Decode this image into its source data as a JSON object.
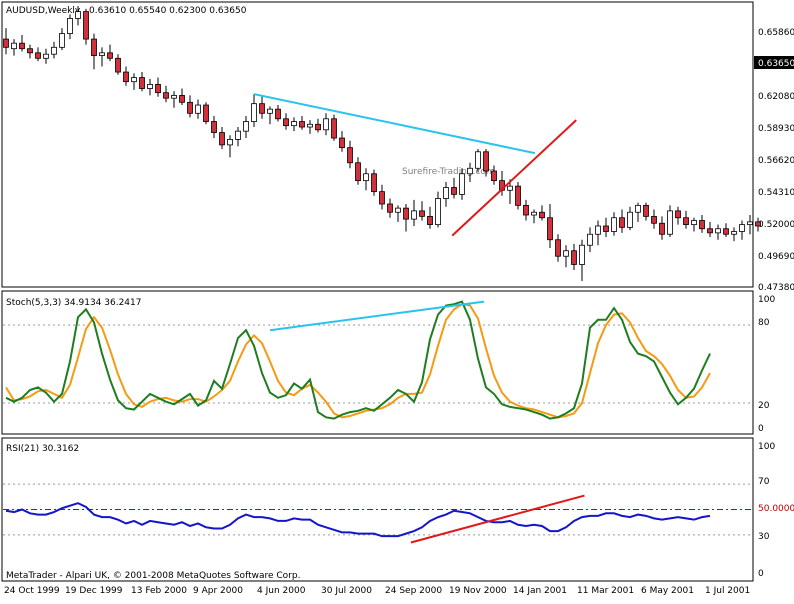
{
  "price_panel": {
    "header": {
      "symbol": "AUDUSD,Weekly",
      "ohlc": "0.63610 0.65540 0.62300 0.63650"
    },
    "axis_labels": [
      "0.65860",
      "0.62080",
      "0.58930",
      "0.56620",
      "0.54310",
      "0.52000",
      "0.49690",
      "0.47380"
    ],
    "current_price": "0.63650",
    "watermark": "Surefire-Trading.com"
  },
  "stoch_panel": {
    "header": "Stoch(5,3,3) 34.9134 36.2417",
    "axis_labels": [
      "100",
      "80",
      "20",
      "0"
    ]
  },
  "rsi_panel": {
    "header": "RSI(21) 30.3162",
    "axis_labels": [
      "100",
      "70",
      "30",
      "0"
    ],
    "level_label": "50.0000"
  },
  "footer": "MetaTrader - Alpari UK, © 2001-2008 MetaQuotes Software Corp.",
  "x_axis": [
    "24 Oct 1999",
    "19 Dec 1999",
    "13 Feb 2000",
    "9 Apr 2000",
    "4 Jun 2000",
    "30 Jul 2000",
    "24 Sep 2000",
    "19 Nov 2000",
    "14 Jan 2001",
    "11 Mar 2001",
    "6 May 2001",
    "1 Jul 2001"
  ],
  "colors": {
    "bull": "#ffffff",
    "bear": "#d0313a",
    "outline": "#000000",
    "stoch_main": "#1e7d1e",
    "stoch_signal": "#f59a12",
    "rsi": "#1515c8",
    "trend_blue": "#29c3ee",
    "trend_red": "#e01818",
    "level": "#c00000"
  },
  "chart_data": [
    {
      "type": "candlestick",
      "title": "AUDUSD,Weekly",
      "ylim": [
        0.4738,
        0.6586
      ],
      "x_start": "1999-10-24",
      "x_end": "2001-07-22",
      "candles": [
        {
          "o": 0.652,
          "h": 0.66,
          "l": 0.641,
          "c": 0.646
        },
        {
          "o": 0.645,
          "h": 0.652,
          "l": 0.64,
          "c": 0.649
        },
        {
          "o": 0.649,
          "h": 0.655,
          "l": 0.643,
          "c": 0.645
        },
        {
          "o": 0.645,
          "h": 0.648,
          "l": 0.638,
          "c": 0.642
        },
        {
          "o": 0.642,
          "h": 0.646,
          "l": 0.636,
          "c": 0.638
        },
        {
          "o": 0.638,
          "h": 0.645,
          "l": 0.634,
          "c": 0.641
        },
        {
          "o": 0.641,
          "h": 0.65,
          "l": 0.638,
          "c": 0.646
        },
        {
          "o": 0.646,
          "h": 0.66,
          "l": 0.644,
          "c": 0.656
        },
        {
          "o": 0.656,
          "h": 0.67,
          "l": 0.652,
          "c": 0.667
        },
        {
          "o": 0.667,
          "h": 0.676,
          "l": 0.662,
          "c": 0.672
        },
        {
          "o": 0.672,
          "h": 0.674,
          "l": 0.648,
          "c": 0.652
        },
        {
          "o": 0.652,
          "h": 0.656,
          "l": 0.63,
          "c": 0.64
        },
        {
          "o": 0.64,
          "h": 0.646,
          "l": 0.632,
          "c": 0.642
        },
        {
          "o": 0.642,
          "h": 0.648,
          "l": 0.636,
          "c": 0.638
        },
        {
          "o": 0.638,
          "h": 0.641,
          "l": 0.626,
          "c": 0.628
        },
        {
          "o": 0.628,
          "h": 0.632,
          "l": 0.618,
          "c": 0.621
        },
        {
          "o": 0.621,
          "h": 0.627,
          "l": 0.615,
          "c": 0.624
        },
        {
          "o": 0.624,
          "h": 0.628,
          "l": 0.614,
          "c": 0.616
        },
        {
          "o": 0.616,
          "h": 0.623,
          "l": 0.611,
          "c": 0.619
        },
        {
          "o": 0.619,
          "h": 0.624,
          "l": 0.61,
          "c": 0.613
        },
        {
          "o": 0.613,
          "h": 0.618,
          "l": 0.606,
          "c": 0.609
        },
        {
          "o": 0.609,
          "h": 0.614,
          "l": 0.602,
          "c": 0.611
        },
        {
          "o": 0.611,
          "h": 0.616,
          "l": 0.604,
          "c": 0.606
        },
        {
          "o": 0.606,
          "h": 0.611,
          "l": 0.595,
          "c": 0.598
        },
        {
          "o": 0.598,
          "h": 0.608,
          "l": 0.594,
          "c": 0.604
        },
        {
          "o": 0.604,
          "h": 0.606,
          "l": 0.59,
          "c": 0.592
        },
        {
          "o": 0.592,
          "h": 0.596,
          "l": 0.58,
          "c": 0.584
        },
        {
          "o": 0.584,
          "h": 0.588,
          "l": 0.572,
          "c": 0.575
        },
        {
          "o": 0.575,
          "h": 0.582,
          "l": 0.566,
          "c": 0.579
        },
        {
          "o": 0.579,
          "h": 0.588,
          "l": 0.574,
          "c": 0.585
        },
        {
          "o": 0.585,
          "h": 0.596,
          "l": 0.58,
          "c": 0.592
        },
        {
          "o": 0.592,
          "h": 0.612,
          "l": 0.588,
          "c": 0.605
        },
        {
          "o": 0.605,
          "h": 0.61,
          "l": 0.594,
          "c": 0.598
        },
        {
          "o": 0.598,
          "h": 0.603,
          "l": 0.59,
          "c": 0.601
        },
        {
          "o": 0.601,
          "h": 0.604,
          "l": 0.592,
          "c": 0.594
        },
        {
          "o": 0.594,
          "h": 0.598,
          "l": 0.586,
          "c": 0.589
        },
        {
          "o": 0.589,
          "h": 0.595,
          "l": 0.585,
          "c": 0.592
        },
        {
          "o": 0.592,
          "h": 0.596,
          "l": 0.586,
          "c": 0.588
        },
        {
          "o": 0.588,
          "h": 0.593,
          "l": 0.583,
          "c": 0.59
        },
        {
          "o": 0.59,
          "h": 0.594,
          "l": 0.584,
          "c": 0.586
        },
        {
          "o": 0.586,
          "h": 0.598,
          "l": 0.582,
          "c": 0.594
        },
        {
          "o": 0.594,
          "h": 0.597,
          "l": 0.578,
          "c": 0.58
        },
        {
          "o": 0.58,
          "h": 0.585,
          "l": 0.57,
          "c": 0.573
        },
        {
          "o": 0.573,
          "h": 0.578,
          "l": 0.558,
          "c": 0.562
        },
        {
          "o": 0.562,
          "h": 0.566,
          "l": 0.546,
          "c": 0.549
        },
        {
          "o": 0.549,
          "h": 0.558,
          "l": 0.542,
          "c": 0.554
        },
        {
          "o": 0.554,
          "h": 0.557,
          "l": 0.538,
          "c": 0.541
        },
        {
          "o": 0.541,
          "h": 0.546,
          "l": 0.528,
          "c": 0.532
        },
        {
          "o": 0.532,
          "h": 0.536,
          "l": 0.522,
          "c": 0.526
        },
        {
          "o": 0.526,
          "h": 0.531,
          "l": 0.519,
          "c": 0.529
        },
        {
          "o": 0.529,
          "h": 0.532,
          "l": 0.512,
          "c": 0.521
        },
        {
          "o": 0.521,
          "h": 0.535,
          "l": 0.516,
          "c": 0.527
        },
        {
          "o": 0.527,
          "h": 0.534,
          "l": 0.52,
          "c": 0.523
        },
        {
          "o": 0.523,
          "h": 0.53,
          "l": 0.514,
          "c": 0.517
        },
        {
          "o": 0.517,
          "h": 0.541,
          "l": 0.515,
          "c": 0.536
        },
        {
          "o": 0.536,
          "h": 0.548,
          "l": 0.53,
          "c": 0.544
        },
        {
          "o": 0.544,
          "h": 0.551,
          "l": 0.536,
          "c": 0.539
        },
        {
          "o": 0.539,
          "h": 0.558,
          "l": 0.535,
          "c": 0.554
        },
        {
          "o": 0.554,
          "h": 0.562,
          "l": 0.548,
          "c": 0.558
        },
        {
          "o": 0.558,
          "h": 0.572,
          "l": 0.555,
          "c": 0.57
        },
        {
          "o": 0.57,
          "h": 0.572,
          "l": 0.552,
          "c": 0.556
        },
        {
          "o": 0.556,
          "h": 0.56,
          "l": 0.546,
          "c": 0.549
        },
        {
          "o": 0.549,
          "h": 0.556,
          "l": 0.538,
          "c": 0.542
        },
        {
          "o": 0.542,
          "h": 0.55,
          "l": 0.532,
          "c": 0.545
        },
        {
          "o": 0.545,
          "h": 0.548,
          "l": 0.528,
          "c": 0.531
        },
        {
          "o": 0.531,
          "h": 0.535,
          "l": 0.52,
          "c": 0.524
        },
        {
          "o": 0.524,
          "h": 0.528,
          "l": 0.518,
          "c": 0.526
        },
        {
          "o": 0.526,
          "h": 0.531,
          "l": 0.52,
          "c": 0.522
        },
        {
          "o": 0.522,
          "h": 0.532,
          "l": 0.5,
          "c": 0.506
        },
        {
          "o": 0.506,
          "h": 0.51,
          "l": 0.49,
          "c": 0.494
        },
        {
          "o": 0.494,
          "h": 0.502,
          "l": 0.486,
          "c": 0.498
        },
        {
          "o": 0.498,
          "h": 0.503,
          "l": 0.484,
          "c": 0.488
        },
        {
          "o": 0.488,
          "h": 0.506,
          "l": 0.476,
          "c": 0.502
        },
        {
          "o": 0.502,
          "h": 0.515,
          "l": 0.497,
          "c": 0.51
        },
        {
          "o": 0.51,
          "h": 0.52,
          "l": 0.502,
          "c": 0.516
        },
        {
          "o": 0.516,
          "h": 0.522,
          "l": 0.508,
          "c": 0.512
        },
        {
          "o": 0.512,
          "h": 0.526,
          "l": 0.509,
          "c": 0.522
        },
        {
          "o": 0.522,
          "h": 0.528,
          "l": 0.511,
          "c": 0.515
        },
        {
          "o": 0.515,
          "h": 0.53,
          "l": 0.513,
          "c": 0.526
        },
        {
          "o": 0.526,
          "h": 0.533,
          "l": 0.519,
          "c": 0.531
        },
        {
          "o": 0.531,
          "h": 0.533,
          "l": 0.52,
          "c": 0.523
        },
        {
          "o": 0.523,
          "h": 0.528,
          "l": 0.514,
          "c": 0.518
        },
        {
          "o": 0.518,
          "h": 0.523,
          "l": 0.506,
          "c": 0.51
        },
        {
          "o": 0.51,
          "h": 0.531,
          "l": 0.508,
          "c": 0.527
        },
        {
          "o": 0.527,
          "h": 0.53,
          "l": 0.517,
          "c": 0.522
        },
        {
          "o": 0.522,
          "h": 0.527,
          "l": 0.514,
          "c": 0.517
        },
        {
          "o": 0.517,
          "h": 0.522,
          "l": 0.512,
          "c": 0.52
        },
        {
          "o": 0.52,
          "h": 0.524,
          "l": 0.511,
          "c": 0.514
        },
        {
          "o": 0.514,
          "h": 0.519,
          "l": 0.508,
          "c": 0.511
        },
        {
          "o": 0.511,
          "h": 0.517,
          "l": 0.506,
          "c": 0.514
        },
        {
          "o": 0.514,
          "h": 0.518,
          "l": 0.508,
          "c": 0.51
        },
        {
          "o": 0.51,
          "h": 0.515,
          "l": 0.505,
          "c": 0.512
        },
        {
          "o": 0.512,
          "h": 0.52,
          "l": 0.506,
          "c": 0.517
        },
        {
          "o": 0.517,
          "h": 0.524,
          "l": 0.51,
          "c": 0.519
        },
        {
          "o": 0.519,
          "h": 0.522,
          "l": 0.512,
          "c": 0.516
        }
      ],
      "trendlines": [
        {
          "color": "trend_blue",
          "from": {
            "x": "2000-05-21",
            "y": 0.612
          },
          "to": {
            "x": "2001-01-14",
            "y": 0.569
          }
        },
        {
          "color": "trend_red",
          "from": {
            "x": "2000-11-05",
            "y": 0.509
          },
          "to": {
            "x": "2001-02-18",
            "y": 0.593
          }
        }
      ]
    },
    {
      "type": "line",
      "title": "Stoch(5,3,3)",
      "ylim": [
        0,
        100
      ],
      "levels": [
        80,
        20
      ],
      "series": [
        {
          "name": "main",
          "color": "stoch_main",
          "values": [
            24,
            21,
            24,
            30,
            32,
            28,
            21,
            27,
            52,
            86,
            92,
            82,
            58,
            38,
            22,
            16,
            15,
            21,
            27,
            24,
            21,
            19,
            23,
            27,
            18,
            22,
            37,
            31,
            50,
            70,
            76,
            64,
            43,
            28,
            24,
            26,
            35,
            31,
            38,
            13,
            9,
            8,
            11,
            13,
            14,
            16,
            14,
            19,
            24,
            30,
            27,
            21,
            36,
            69,
            88,
            95,
            96,
            98,
            84,
            54,
            32,
            27,
            19,
            17,
            16,
            15,
            13,
            11,
            8,
            9,
            12,
            16,
            35,
            78,
            84,
            84,
            93,
            84,
            67,
            58,
            56,
            52,
            40,
            28,
            19,
            24,
            31,
            45,
            58
          ]
        },
        {
          "name": "signal",
          "color": "stoch_signal",
          "values": [
            32,
            22,
            23,
            25,
            29,
            30,
            27,
            24,
            34,
            55,
            77,
            86,
            78,
            61,
            42,
            27,
            19,
            17,
            21,
            23,
            24,
            22,
            21,
            23,
            23,
            21,
            25,
            30,
            37,
            52,
            65,
            72,
            66,
            52,
            37,
            28,
            26,
            31,
            34,
            28,
            21,
            12,
            9,
            10,
            12,
            14,
            15,
            16,
            19,
            24,
            27,
            27,
            28,
            42,
            64,
            84,
            92,
            96,
            95,
            85,
            62,
            41,
            28,
            21,
            18,
            16,
            15,
            13,
            11,
            9,
            10,
            12,
            20,
            43,
            66,
            80,
            88,
            89,
            82,
            70,
            60,
            56,
            50,
            41,
            30,
            24,
            25,
            32,
            43
          ]
        }
      ]
    },
    {
      "type": "line",
      "title": "RSI(21)",
      "ylim": [
        0,
        100
      ],
      "levels": [
        70,
        50,
        30
      ],
      "series": [
        {
          "name": "RSI",
          "color": "rsi",
          "values": [
            49,
            48,
            50,
            47,
            46,
            46,
            48,
            51,
            53,
            55,
            52,
            46,
            44,
            44,
            42,
            39,
            41,
            38,
            41,
            40,
            39,
            38,
            40,
            37,
            39,
            36,
            35,
            35,
            38,
            43,
            46,
            44,
            44,
            43,
            41,
            41,
            43,
            42,
            42,
            38,
            36,
            34,
            32,
            32,
            31,
            31,
            31,
            29,
            29,
            29,
            31,
            33,
            36,
            41,
            44,
            46,
            49,
            48,
            47,
            44,
            41,
            40,
            40,
            41,
            38,
            37,
            38,
            37,
            33,
            33,
            36,
            41,
            44,
            45,
            45,
            47,
            47,
            45,
            44,
            46,
            45,
            43,
            42,
            43,
            44,
            43,
            42,
            44,
            45
          ]
        }
      ],
      "trendlines": [
        {
          "color": "trend_red",
          "from": {
            "x": "2000-10-01",
            "y": 24
          },
          "to": {
            "x": "2001-02-25",
            "y": 61
          }
        }
      ]
    }
  ]
}
